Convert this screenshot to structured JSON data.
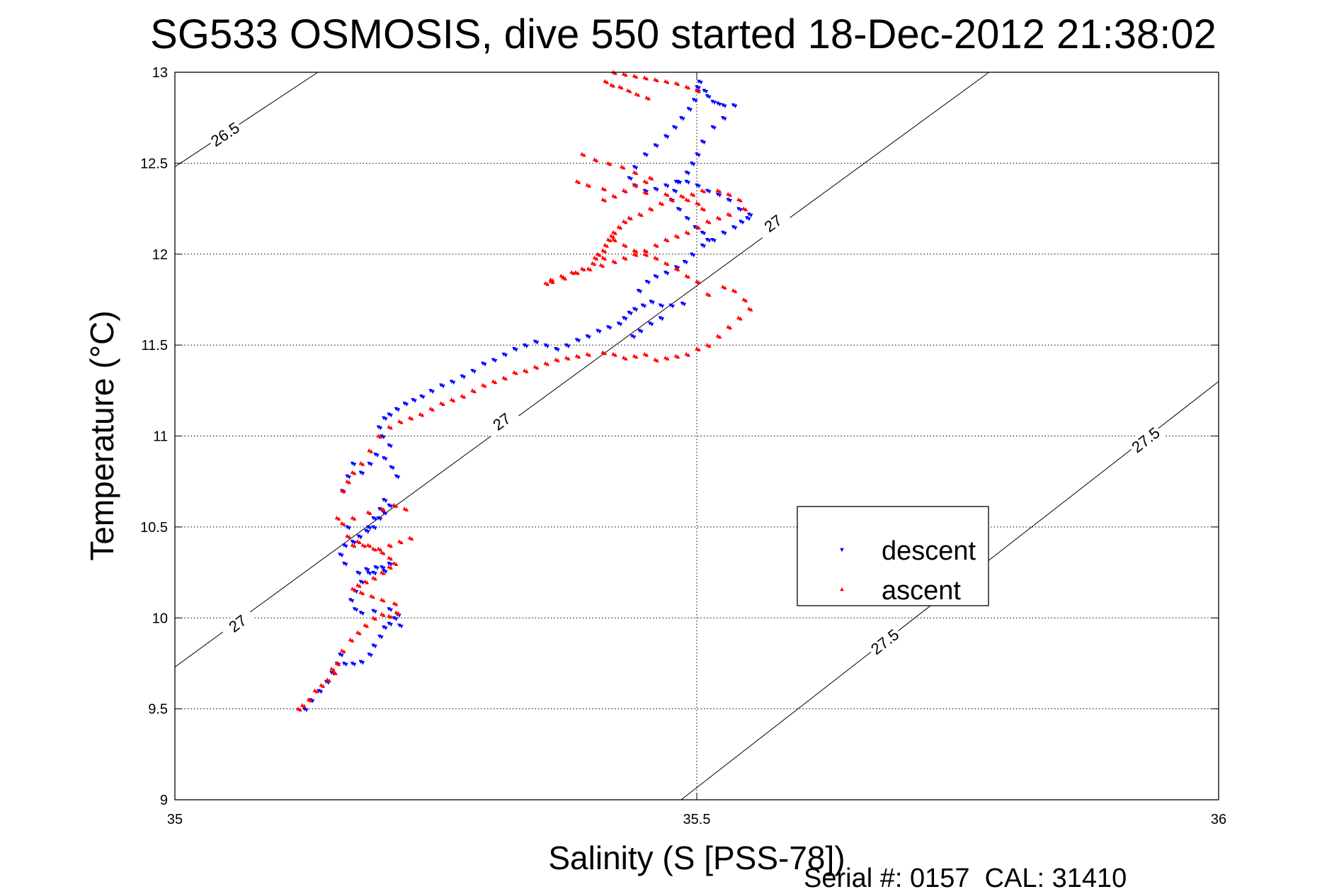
{
  "chart_data": {
    "type": "scatter",
    "title": "SG533 OSMOSIS, dive 550 started 18-Dec-2012 21:38:02",
    "xlabel": "Salinity (S [PSS-78])",
    "ylabel": "Temperature (°C)",
    "xlim": [
      35,
      36
    ],
    "ylim": [
      9,
      13
    ],
    "xticks": [
      "35",
      "35.5",
      "36"
    ],
    "yticks": [
      "9",
      "9.5",
      "10",
      "10.5",
      "11",
      "11.5",
      "12",
      "12.5",
      "13"
    ],
    "grid": true,
    "legend_position": "center-right",
    "footer": "Serial #: 0157  CAL: 31410",
    "isopycnals": [
      {
        "label": "26.5",
        "points": [
          [
            35.0,
            12.48
          ],
          [
            35.137,
            13.0
          ]
        ],
        "label_at": [
          35.048,
          12.66
        ]
      },
      {
        "label": "27",
        "points": [
          [
            35.0,
            9.73
          ],
          [
            35.78,
            13.0
          ]
        ],
        "label_at": [
          35.06,
          9.97
        ]
      },
      {
        "label": "27",
        "label_at": [
          35.313,
          11.08
        ]
      },
      {
        "label": "27",
        "label_at": [
          35.573,
          12.17
        ]
      },
      {
        "label": "27.5",
        "points": [
          [
            35.485,
            9.0
          ],
          [
            36.0,
            11.3
          ]
        ],
        "label_at": [
          35.68,
          9.87
        ]
      },
      {
        "label": "27.5",
        "label_at": [
          35.93,
          10.98
        ]
      }
    ],
    "series": [
      {
        "name": "descent",
        "color": "#0000ff",
        "marker": "triangle-down",
        "x": [
          35.124,
          35.13,
          35.138,
          35.145,
          35.15,
          35.155,
          35.158,
          35.162,
          35.17,
          35.178,
          35.186,
          35.19,
          35.196,
          35.2,
          35.205,
          35.21,
          35.215,
          35.213,
          35.205,
          35.19,
          35.178,
          35.172,
          35.168,
          35.172,
          35.178,
          35.185,
          35.192,
          35.2,
          35.205,
          35.198,
          35.19,
          35.183,
          35.175,
          35.162,
          35.158,
          35.162,
          35.17,
          35.176,
          35.185,
          35.19,
          35.196,
          35.2,
          35.205,
          35.2,
          35.195,
          35.19,
          35.183,
          35.176,
          35.17,
          35.165,
          35.16,
          35.165,
          35.17,
          35.178,
          35.186,
          35.192,
          35.2,
          35.207,
          35.212,
          35.205,
          35.198,
          35.195,
          35.2,
          35.205,
          35.212,
          35.22,
          35.228,
          35.236,
          35.245,
          35.255,
          35.265,
          35.275,
          35.285,
          35.295,
          35.305,
          35.315,
          35.325,
          35.335,
          35.345,
          35.355,
          35.365,
          35.375,
          35.385,
          35.395,
          35.405,
          35.415,
          35.425,
          35.43,
          35.435,
          35.44,
          35.448,
          35.456,
          35.465,
          35.475,
          35.486,
          35.465,
          35.455,
          35.445,
          35.438,
          35.444,
          35.452,
          35.46,
          35.47,
          35.48,
          35.488,
          35.495,
          35.505,
          35.515,
          35.525,
          35.535,
          35.542,
          35.548,
          35.55,
          35.54,
          35.53,
          35.52,
          35.51,
          35.5,
          35.49,
          35.48,
          35.47,
          35.46,
          35.45,
          35.44,
          35.435,
          35.44,
          35.45,
          35.46,
          35.47,
          35.478,
          35.485,
          35.492,
          35.497,
          35.5,
          35.5,
          35.502,
          35.507,
          35.51,
          35.515,
          35.52,
          35.525,
          35.535,
          35.525,
          35.515,
          35.505,
          35.5,
          35.495,
          35.49,
          35.482,
          35.478,
          35.475,
          35.482,
          35.49,
          35.498,
          35.505,
          35.51
        ],
        "y": [
          9.5,
          9.55,
          9.6,
          9.65,
          9.7,
          9.75,
          9.8,
          9.75,
          9.75,
          9.76,
          9.8,
          9.85,
          9.9,
          9.95,
          9.97,
          10.0,
          9.96,
          10.02,
          10.05,
          10.04,
          10.03,
          10.05,
          10.1,
          10.15,
          10.2,
          10.25,
          10.28,
          10.26,
          10.3,
          10.28,
          10.25,
          10.27,
          10.25,
          10.3,
          10.35,
          10.4,
          10.42,
          10.45,
          10.5,
          10.55,
          10.6,
          10.65,
          10.62,
          10.58,
          10.55,
          10.5,
          10.48,
          10.45,
          10.42,
          10.5,
          10.7,
          10.78,
          10.85,
          10.8,
          10.85,
          10.9,
          10.88,
          10.83,
          10.78,
          10.95,
          11.0,
          11.05,
          11.1,
          11.12,
          11.15,
          11.18,
          11.2,
          11.22,
          11.25,
          11.28,
          11.3,
          11.33,
          11.36,
          11.4,
          11.42,
          11.45,
          11.48,
          11.5,
          11.52,
          11.5,
          11.48,
          11.5,
          11.53,
          11.55,
          11.58,
          11.6,
          11.62,
          11.65,
          11.68,
          11.7,
          11.72,
          11.74,
          11.72,
          11.72,
          11.73,
          11.65,
          11.62,
          11.58,
          11.55,
          11.8,
          11.85,
          11.88,
          11.9,
          11.93,
          11.96,
          12.0,
          12.05,
          12.08,
          12.12,
          12.15,
          12.18,
          12.2,
          12.22,
          12.25,
          12.3,
          12.33,
          12.35,
          12.38,
          12.4,
          12.4,
          12.38,
          12.36,
          12.35,
          12.38,
          12.42,
          12.48,
          12.55,
          12.6,
          12.65,
          12.7,
          12.75,
          12.8,
          12.85,
          12.9,
          12.92,
          12.95,
          12.9,
          12.87,
          12.84,
          12.83,
          12.82,
          12.82,
          12.75,
          12.7,
          12.62,
          12.55,
          12.5,
          12.45,
          12.4,
          12.35,
          12.3,
          12.25,
          12.2,
          12.15,
          12.12,
          12.08
        ],
        "label_point": [
          35.62,
          10.5
        ]
      },
      {
        "name": "ascent",
        "color": "#ff0000",
        "marker": "triangle-up",
        "x": [
          35.118,
          35.122,
          35.128,
          35.134,
          35.14,
          35.146,
          35.152,
          35.155,
          35.15,
          35.16,
          35.168,
          35.175,
          35.182,
          35.19,
          35.198,
          35.205,
          35.212,
          35.21,
          35.198,
          35.188,
          35.178,
          35.17,
          35.175,
          35.182,
          35.19,
          35.198,
          35.205,
          35.21,
          35.205,
          35.198,
          35.19,
          35.18,
          35.17,
          35.165,
          35.175,
          35.185,
          35.195,
          35.205,
          35.215,
          35.225,
          35.22,
          35.21,
          35.198,
          35.185,
          35.17,
          35.16,
          35.155,
          35.16,
          35.165,
          35.17,
          35.178,
          35.186,
          35.195,
          35.205,
          35.215,
          35.225,
          35.235,
          35.245,
          35.255,
          35.265,
          35.275,
          35.285,
          35.295,
          35.305,
          35.315,
          35.325,
          35.335,
          35.345,
          35.355,
          35.365,
          35.375,
          35.385,
          35.395,
          35.41,
          35.42,
          35.43,
          35.44,
          35.45,
          35.46,
          35.47,
          35.48,
          35.49,
          35.5,
          35.51,
          35.52,
          35.53,
          35.54,
          35.55,
          35.545,
          35.535,
          35.525,
          35.51,
          35.5,
          35.49,
          35.48,
          35.47,
          35.46,
          35.45,
          35.44,
          35.43,
          35.42,
          35.41,
          35.4,
          35.39,
          35.38,
          35.37,
          35.36,
          35.355,
          35.36,
          35.372,
          35.384,
          35.396,
          35.408,
          35.42,
          35.43,
          35.44,
          35.45,
          35.46,
          35.47,
          35.48,
          35.49,
          35.5,
          35.51,
          35.52,
          35.53,
          35.545,
          35.54,
          35.53,
          35.52,
          35.505,
          35.495,
          35.485,
          35.475,
          35.465,
          35.455,
          35.445,
          35.435,
          35.43,
          35.425,
          35.42,
          35.418,
          35.415,
          35.412,
          35.41,
          35.405,
          35.402,
          35.41,
          35.42,
          35.43,
          35.44,
          35.45,
          35.455,
          35.44,
          35.428,
          35.415,
          35.402,
          35.39,
          35.385,
          35.395,
          35.41,
          35.43,
          35.45,
          35.47,
          35.49,
          35.5,
          35.505,
          35.5,
          35.49,
          35.48,
          35.47,
          35.46,
          35.45,
          35.44,
          35.43,
          35.42,
          35.412,
          35.418,
          35.426,
          35.434,
          35.442,
          35.452
        ],
        "y": [
          9.5,
          9.52,
          9.55,
          9.6,
          9.63,
          9.66,
          9.7,
          9.75,
          9.72,
          9.82,
          9.88,
          9.92,
          9.96,
          10.0,
          10.02,
          10.01,
          10.03,
          10.08,
          10.1,
          10.12,
          10.14,
          10.16,
          10.18,
          10.2,
          10.22,
          10.25,
          10.28,
          10.3,
          10.33,
          10.36,
          10.38,
          10.4,
          10.4,
          10.45,
          10.42,
          10.4,
          10.38,
          10.4,
          10.42,
          10.44,
          10.6,
          10.62,
          10.6,
          10.58,
          10.55,
          10.52,
          10.55,
          10.7,
          10.75,
          10.8,
          10.85,
          10.92,
          11.0,
          11.05,
          11.08,
          11.1,
          11.12,
          11.15,
          11.18,
          11.2,
          11.22,
          11.25,
          11.28,
          11.3,
          11.32,
          11.35,
          11.36,
          11.38,
          11.4,
          11.42,
          11.43,
          11.44,
          11.45,
          11.46,
          11.45,
          11.43,
          11.44,
          11.45,
          11.42,
          11.43,
          11.44,
          11.45,
          11.48,
          11.5,
          11.55,
          11.6,
          11.65,
          11.7,
          11.75,
          11.8,
          11.82,
          11.78,
          11.85,
          11.88,
          11.92,
          11.95,
          11.98,
          12.0,
          12.02,
          12.05,
          12.08,
          11.98,
          11.95,
          11.92,
          11.9,
          11.88,
          11.86,
          11.84,
          11.85,
          11.87,
          11.9,
          11.92,
          11.94,
          11.96,
          11.98,
          12.0,
          12.02,
          12.05,
          12.08,
          12.1,
          12.12,
          12.15,
          12.18,
          12.2,
          12.22,
          12.25,
          12.3,
          12.33,
          12.35,
          12.35,
          12.33,
          12.32,
          12.3,
          12.28,
          12.25,
          12.22,
          12.2,
          12.18,
          12.15,
          12.12,
          12.1,
          12.08,
          12.05,
          12.02,
          12.0,
          11.98,
          12.3,
          12.32,
          12.35,
          12.38,
          12.4,
          12.42,
          12.45,
          12.48,
          12.5,
          12.52,
          12.55,
          12.4,
          12.38,
          12.36,
          12.35,
          12.34,
          12.33,
          12.3,
          12.28,
          12.25,
          12.9,
          12.92,
          12.94,
          12.95,
          12.96,
          12.97,
          12.98,
          12.99,
          13.0,
          12.95,
          12.93,
          12.92,
          12.9,
          12.88,
          12.86
        ],
        "label_point": [
          35.62,
          10.25
        ]
      }
    ]
  }
}
